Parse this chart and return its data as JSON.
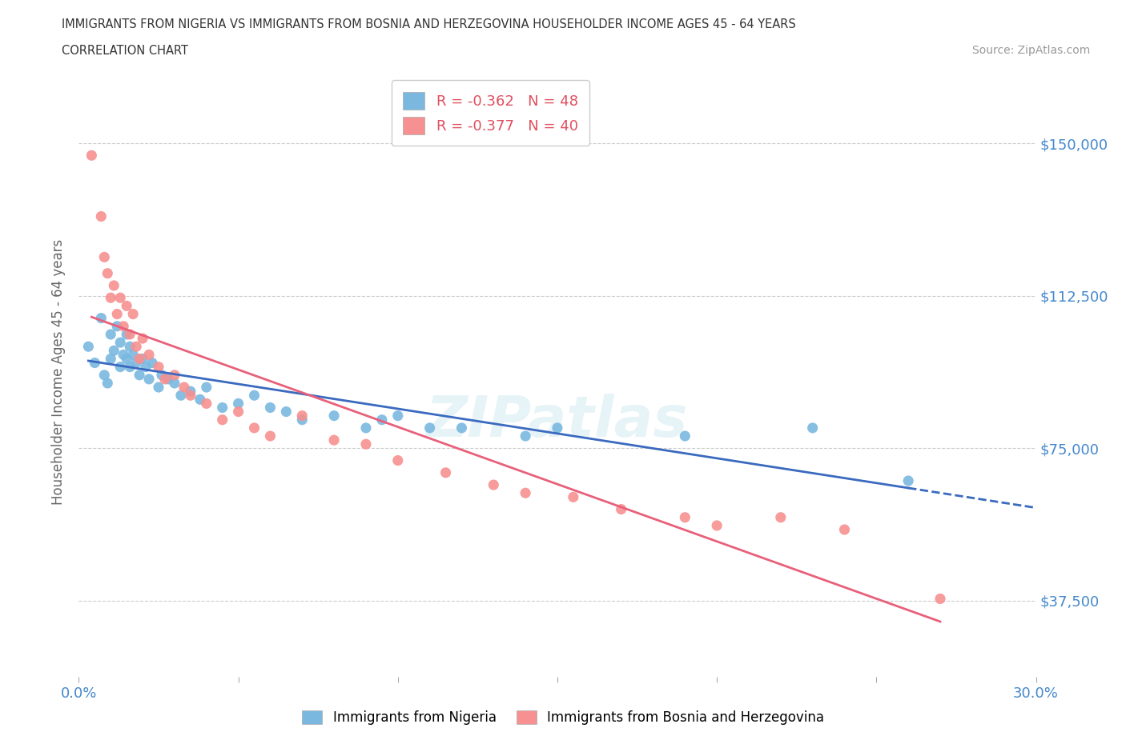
{
  "title_line1": "IMMIGRANTS FROM NIGERIA VS IMMIGRANTS FROM BOSNIA AND HERZEGOVINA HOUSEHOLDER INCOME AGES 45 - 64 YEARS",
  "title_line2": "CORRELATION CHART",
  "source_text": "Source: ZipAtlas.com",
  "ylabel": "Householder Income Ages 45 - 64 years",
  "xlim": [
    0.0,
    0.3
  ],
  "ylim": [
    18750,
    168750
  ],
  "yticks": [
    37500,
    75000,
    112500,
    150000
  ],
  "ytick_labels": [
    "$37,500",
    "$75,000",
    "$112,500",
    "$150,000"
  ],
  "xticks": [
    0.0,
    0.05,
    0.1,
    0.15,
    0.2,
    0.25,
    0.3
  ],
  "nigeria_color": "#7ab8e0",
  "bosnia_color": "#f79090",
  "nigeria_R": -0.362,
  "nigeria_N": 48,
  "bosnia_R": -0.377,
  "bosnia_N": 40,
  "nigeria_line_color": "#3a6abf",
  "bosnia_line_color": "#e8607a",
  "nigeria_x": [
    0.003,
    0.005,
    0.007,
    0.008,
    0.009,
    0.01,
    0.01,
    0.011,
    0.012,
    0.013,
    0.013,
    0.014,
    0.015,
    0.015,
    0.016,
    0.016,
    0.017,
    0.018,
    0.019,
    0.02,
    0.021,
    0.022,
    0.023,
    0.025,
    0.026,
    0.028,
    0.03,
    0.032,
    0.035,
    0.038,
    0.04,
    0.045,
    0.05,
    0.055,
    0.06,
    0.065,
    0.07,
    0.08,
    0.09,
    0.095,
    0.1,
    0.11,
    0.12,
    0.14,
    0.15,
    0.19,
    0.23,
    0.26
  ],
  "nigeria_y": [
    100000,
    96000,
    107000,
    93000,
    91000,
    103000,
    97000,
    99000,
    105000,
    101000,
    95000,
    98000,
    103000,
    97000,
    100000,
    95000,
    98000,
    96000,
    93000,
    97000,
    95000,
    92000,
    96000,
    90000,
    93000,
    92000,
    91000,
    88000,
    89000,
    87000,
    90000,
    85000,
    86000,
    88000,
    85000,
    84000,
    82000,
    83000,
    80000,
    82000,
    83000,
    80000,
    80000,
    78000,
    80000,
    78000,
    80000,
    67000
  ],
  "bosnia_x": [
    0.004,
    0.007,
    0.008,
    0.009,
    0.01,
    0.011,
    0.012,
    0.013,
    0.014,
    0.015,
    0.016,
    0.017,
    0.018,
    0.019,
    0.02,
    0.022,
    0.025,
    0.027,
    0.03,
    0.033,
    0.035,
    0.04,
    0.045,
    0.05,
    0.055,
    0.06,
    0.07,
    0.08,
    0.09,
    0.1,
    0.115,
    0.13,
    0.14,
    0.155,
    0.17,
    0.19,
    0.2,
    0.22,
    0.24,
    0.27
  ],
  "bosnia_y": [
    147000,
    132000,
    122000,
    118000,
    112000,
    115000,
    108000,
    112000,
    105000,
    110000,
    103000,
    108000,
    100000,
    97000,
    102000,
    98000,
    95000,
    92000,
    93000,
    90000,
    88000,
    86000,
    82000,
    84000,
    80000,
    78000,
    83000,
    77000,
    76000,
    72000,
    69000,
    66000,
    64000,
    63000,
    60000,
    58000,
    56000,
    58000,
    55000,
    38000
  ]
}
